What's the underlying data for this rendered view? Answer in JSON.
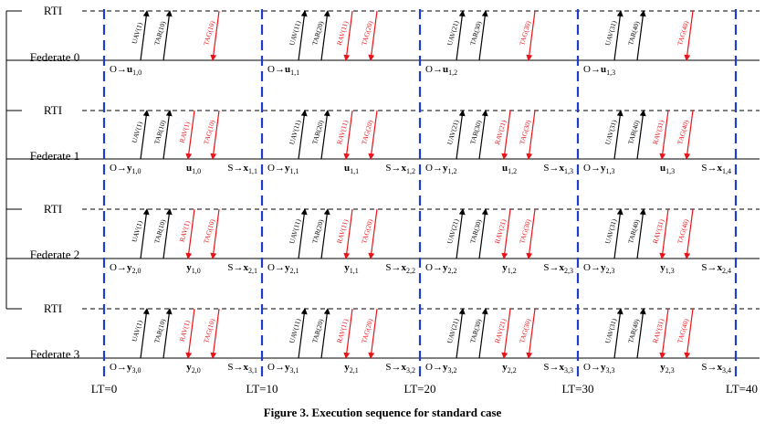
{
  "rti_label": "RTI",
  "federates": [
    {
      "name": "Federate 0",
      "messages": [
        [
          "UAV(1)",
          "TAR(10)",
          "TAG(10)"
        ],
        [
          "UAV(11)",
          "TAR(20)",
          "RAV(11)",
          "TAG(20)"
        ],
        [
          "UAV(21)",
          "TAR(30)",
          "TAG(30)"
        ],
        [
          "UAV(31)",
          "TAR(40)",
          "TAG(40)"
        ]
      ],
      "labels": [
        [
          [
            "O→",
            "u",
            "1,0"
          ]
        ],
        [
          [
            "O→",
            "u",
            "1,1"
          ]
        ],
        [
          [
            "O→",
            "u",
            "1,2"
          ]
        ],
        [
          [
            "O→",
            "u",
            "1,3"
          ]
        ]
      ]
    },
    {
      "name": "Federate 1",
      "messages": [
        [
          "UAV(1)",
          "TAR(10)",
          "RAV(1)",
          "TAG(10)"
        ],
        [
          "UAV(11)",
          "TAR(20)",
          "RAV(11)",
          "TAG(20)"
        ],
        [
          "UAV(21)",
          "TAR(30)",
          "RAV(21)",
          "TAG(30)"
        ],
        [
          "UAV(31)",
          "TAR(40)",
          "RAV(31)",
          "TAG(40)"
        ]
      ],
      "labels": [
        [
          [
            "O→",
            "y",
            "1,0"
          ],
          [
            "",
            "u",
            "1,0"
          ],
          [
            "S→",
            "x",
            "1,1"
          ]
        ],
        [
          [
            "O→",
            "y",
            "1,1"
          ],
          [
            "",
            "u",
            "1,1"
          ],
          [
            "S→",
            "x",
            "1,2"
          ]
        ],
        [
          [
            "O→",
            "y",
            "1,2"
          ],
          [
            "",
            "u",
            "1,2"
          ],
          [
            "S→",
            "x",
            "1,3"
          ]
        ],
        [
          [
            "O→",
            "y",
            "1,3"
          ],
          [
            "",
            "u",
            "1,3"
          ],
          [
            "S→",
            "x",
            "1,4"
          ]
        ]
      ]
    },
    {
      "name": "Federate 2",
      "messages": [
        [
          "UAV(1)",
          "TAR(10)",
          "RAV(1)",
          "TAG(10)"
        ],
        [
          "UAV(11)",
          "TAR(20)",
          "RAV(11)",
          "TAG(20)"
        ],
        [
          "UAV(21)",
          "TAR(30)",
          "RAV(21)",
          "TAG(30)"
        ],
        [
          "UAV(31)",
          "TAR(40)",
          "RAV(31)",
          "TAG(40)"
        ]
      ],
      "labels": [
        [
          [
            "O→",
            "y",
            "2,0"
          ],
          [
            "",
            "y",
            "1,0"
          ],
          [
            "S→",
            "x",
            "2,1"
          ]
        ],
        [
          [
            "O→",
            "y",
            "2,1"
          ],
          [
            "",
            "y",
            "1,1"
          ],
          [
            "S→",
            "x",
            "2,2"
          ]
        ],
        [
          [
            "O→",
            "y",
            "2,2"
          ],
          [
            "",
            "y",
            "1,2"
          ],
          [
            "S→",
            "x",
            "2,3"
          ]
        ],
        [
          [
            "O→",
            "y",
            "2,3"
          ],
          [
            "",
            "y",
            "1,3"
          ],
          [
            "S→",
            "x",
            "2,4"
          ]
        ]
      ]
    },
    {
      "name": "Federate 3",
      "messages": [
        [
          "UAV(1)",
          "TAR(10)",
          "RAV(1)",
          "TAG(10)"
        ],
        [
          "UAV(11)",
          "TAR(20)",
          "RAV(11)",
          "TAG(20)"
        ],
        [
          "UAV(21)",
          "TAR(30)",
          "RAV(21)",
          "TAG(30)"
        ],
        [
          "UAV(31)",
          "TAR(40)",
          "RAV(31)",
          "TAG(40)"
        ]
      ],
      "labels": [
        [
          [
            "O→",
            "y",
            "3,0"
          ],
          [
            "",
            "y",
            "2,0"
          ],
          [
            "S→",
            "x",
            "3,1"
          ]
        ],
        [
          [
            "O→",
            "y",
            "3,1"
          ],
          [
            "",
            "y",
            "2,1"
          ],
          [
            "S→",
            "x",
            "3,2"
          ]
        ],
        [
          [
            "O→",
            "y",
            "3,2"
          ],
          [
            "",
            "y",
            "2,2"
          ],
          [
            "S→",
            "x",
            "3,3"
          ]
        ],
        [
          [
            "O→",
            "y",
            "3,3"
          ],
          [
            "",
            "y",
            "2,3"
          ],
          [
            "S→",
            "x",
            "3,4"
          ]
        ]
      ]
    }
  ],
  "lt_labels": [
    "LT=0",
    "LT=10",
    "LT=20",
    "LT=30",
    "LT=40"
  ],
  "caption": "Figure 3.   Execution sequence for standard case",
  "colors": {
    "up": "#000000",
    "down": "#e8141a",
    "lt_line": "#1f3dcc"
  }
}
